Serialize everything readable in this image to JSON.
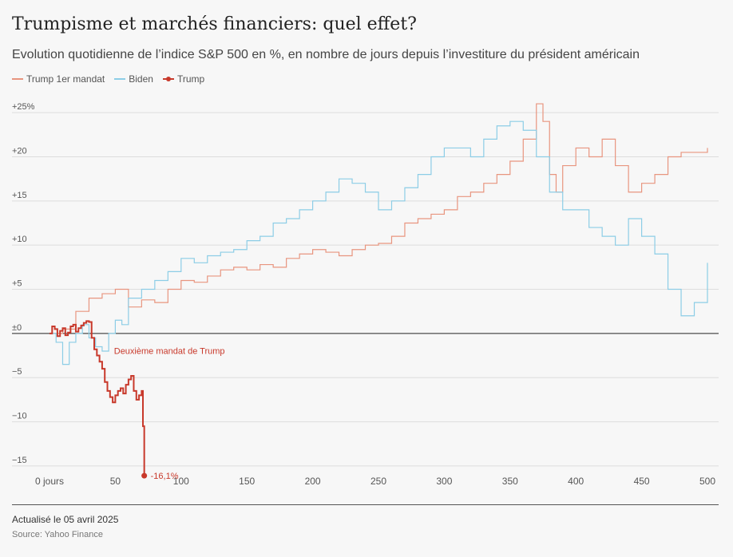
{
  "title": "Trumpisme et marchés financiers: quel effet?",
  "subtitle": "Evolution quotidienne de l’indice S&P 500 en %, en nombre de jours depuis l’investiture du président américain",
  "footer": {
    "updated": "Actualisé le 05 avril 2025",
    "source": "Source: Yahoo Finance"
  },
  "colors": {
    "trump1": "#e8957f",
    "biden": "#8ccde6",
    "trump": "#c8392b",
    "zero": "#222222",
    "grid": "#dddddd"
  },
  "chart_data": {
    "type": "line",
    "xlabel": "",
    "ylabel": "",
    "xlim": [
      0,
      500
    ],
    "ylim": [
      -16,
      27
    ],
    "x_ticks": [
      0,
      50,
      100,
      150,
      200,
      250,
      300,
      350,
      400,
      450,
      500
    ],
    "x_tick_labels": [
      "0 jours",
      "50",
      "100",
      "150",
      "200",
      "250",
      "300",
      "350",
      "400",
      "450",
      "500"
    ],
    "y_ticks": [
      25,
      20,
      15,
      10,
      5,
      0,
      -5,
      -10,
      -15
    ],
    "y_tick_labels": [
      "+25%",
      "+20",
      "+15",
      "+10",
      "+5",
      "±0",
      "−5",
      "−10",
      "−15"
    ],
    "grid": true,
    "legend_position": "top-left",
    "series": [
      {
        "name": "Trump 1er mandat",
        "color": "#e8957f",
        "x": [
          0,
          10,
          20,
          30,
          40,
          50,
          60,
          70,
          80,
          90,
          100,
          110,
          120,
          130,
          140,
          150,
          160,
          170,
          180,
          190,
          200,
          210,
          220,
          230,
          240,
          250,
          260,
          270,
          280,
          290,
          300,
          310,
          320,
          330,
          340,
          350,
          360,
          370,
          375,
          380,
          385,
          390,
          400,
          410,
          420,
          430,
          440,
          450,
          460,
          470,
          480,
          490,
          500
        ],
        "y": [
          0,
          0.5,
          2.5,
          4,
          4.5,
          5,
          3,
          3.8,
          3.5,
          5,
          6,
          5.8,
          6.5,
          7.2,
          7.5,
          7.2,
          7.8,
          7.5,
          8.5,
          9,
          9.5,
          9.2,
          8.8,
          9.5,
          10,
          10.2,
          11,
          12.5,
          13,
          13.5,
          14,
          15.5,
          16,
          17,
          18,
          19.5,
          22,
          26,
          24,
          18,
          16,
          19,
          21,
          20,
          22,
          19,
          16,
          17,
          18,
          20,
          20.5,
          20.5,
          21
        ]
      },
      {
        "name": "Biden",
        "color": "#8ccde6",
        "x": [
          0,
          5,
          10,
          15,
          20,
          25,
          30,
          35,
          40,
          45,
          50,
          55,
          60,
          70,
          80,
          90,
          100,
          110,
          120,
          130,
          140,
          150,
          160,
          170,
          180,
          190,
          200,
          210,
          220,
          230,
          240,
          250,
          260,
          270,
          280,
          290,
          300,
          310,
          320,
          330,
          340,
          350,
          360,
          370,
          380,
          390,
          400,
          410,
          420,
          430,
          440,
          450,
          460,
          470,
          480,
          490,
          500
        ],
        "y": [
          0,
          -1,
          -3.5,
          -1,
          0,
          1,
          -0.5,
          -1.5,
          -2,
          0,
          1.5,
          1,
          4,
          5,
          6,
          7,
          8.5,
          8,
          8.8,
          9.2,
          9.5,
          10.5,
          11,
          12.5,
          13,
          14,
          15,
          16,
          17.5,
          17,
          16,
          14,
          15,
          16.5,
          18,
          20,
          21,
          21,
          20,
          22,
          23.5,
          24,
          23,
          20,
          16,
          14,
          14,
          12,
          11,
          10,
          13,
          11,
          9,
          5,
          2,
          3.5,
          8
        ]
      },
      {
        "name": "Trump",
        "color": "#c8392b",
        "x": [
          0,
          2,
          4,
          6,
          8,
          10,
          12,
          14,
          16,
          18,
          20,
          22,
          24,
          26,
          28,
          30,
          32,
          34,
          36,
          38,
          40,
          42,
          44,
          46,
          48,
          50,
          52,
          54,
          56,
          58,
          60,
          62,
          64,
          66,
          68,
          70,
          71,
          72
        ],
        "y": [
          0,
          0.8,
          0.5,
          -0.3,
          0.3,
          0.6,
          -0.2,
          0.1,
          0.8,
          1.0,
          0.2,
          0.6,
          0.9,
          1.2,
          1.4,
          1.3,
          -0.5,
          -1.8,
          -2.5,
          -3.2,
          -4.0,
          -5.5,
          -6.5,
          -7.2,
          -7.8,
          -7.0,
          -6.5,
          -6.2,
          -6.8,
          -5.8,
          -5.2,
          -4.8,
          -6.5,
          -7.5,
          -7.0,
          -6.5,
          -10.5,
          -16.1
        ]
      }
    ],
    "annotations": [
      {
        "text": "Deuxième mandat de Trump",
        "x": 49,
        "y": -2.3
      },
      {
        "text": "-16,1%",
        "x": 72,
        "y": -16.1
      }
    ]
  }
}
